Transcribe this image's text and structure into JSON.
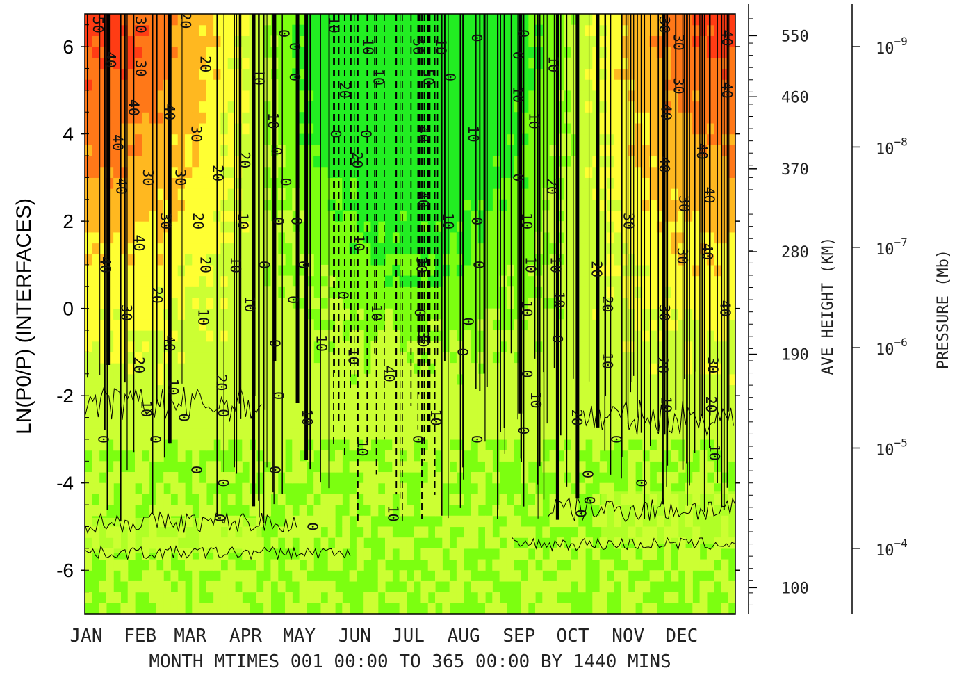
{
  "chart_data": {
    "type": "heatmap",
    "x_label": "MONTH MTIMES 001 00:00 TO 365 00:00 BY 1440 MINS",
    "x_range": [
      1,
      365
    ],
    "x_tick_labels": [
      {
        "day": 1,
        "label": "JAN"
      },
      {
        "day": 32,
        "label": "FEB"
      },
      {
        "day": 60,
        "label": "MAR"
      },
      {
        "day": 91,
        "label": "APR"
      },
      {
        "day": 121,
        "label": "MAY"
      },
      {
        "day": 152,
        "label": "JUN"
      },
      {
        "day": 182,
        "label": "JUL"
      },
      {
        "day": 213,
        "label": "AUG"
      },
      {
        "day": 244,
        "label": "SEP"
      },
      {
        "day": 274,
        "label": "OCT"
      },
      {
        "day": 305,
        "label": "NOV"
      },
      {
        "day": 335,
        "label": "DEC"
      }
    ],
    "y_label": "LN(P0/P) (INTERFACES)",
    "y_range": [
      -7,
      6.75
    ],
    "y_ticks": [
      6,
      4,
      2,
      0,
      -2,
      -4,
      -6
    ],
    "height_axis": {
      "label": "AVE HEIGHT (KM)",
      "ticks": [
        {
          "ln": 6.25,
          "km": "550"
        },
        {
          "ln": 4.85,
          "km": "460"
        },
        {
          "ln": 3.2,
          "km": "370"
        },
        {
          "ln": 1.3,
          "km": "280"
        },
        {
          "ln": -1.05,
          "km": "190"
        },
        {
          "ln": -6.4,
          "km": "100"
        }
      ]
    },
    "pressure_axis": {
      "label": "PRESSURE (Mb)",
      "ticks": [
        {
          "ln": 6.0,
          "base": "10",
          "exp": "−9"
        },
        {
          "ln": 3.7,
          "base": "10",
          "exp": "−8"
        },
        {
          "ln": 1.4,
          "base": "10",
          "exp": "−7"
        },
        {
          "ln": -0.9,
          "base": "10",
          "exp": "−6"
        },
        {
          "ln": -3.2,
          "base": "10",
          "exp": "−5"
        },
        {
          "ln": -5.5,
          "base": "10",
          "exp": "−4"
        }
      ]
    },
    "contour_levels": [
      -50,
      -40,
      -30,
      -20,
      -10,
      0,
      10,
      20,
      30,
      40,
      50
    ],
    "colors": {
      "50": "#ff3c14",
      "40": "#ff7818",
      "30": "#ffb820",
      "20": "#ffff33",
      "10": "#ccff33",
      "0": "#7cff10",
      "-10": "#22ee22"
    },
    "contour_labels": [
      {
        "day": 8,
        "ln": 6.5,
        "text": "50"
      },
      {
        "day": 15,
        "ln": 5.7,
        "text": "40"
      },
      {
        "day": 32,
        "ln": 6.5,
        "text": "30"
      },
      {
        "day": 32,
        "ln": 5.5,
        "text": "30"
      },
      {
        "day": 57,
        "ln": 6.6,
        "text": "20"
      },
      {
        "day": 28,
        "ln": 4.6,
        "text": "40"
      },
      {
        "day": 48,
        "ln": 4.5,
        "text": "40"
      },
      {
        "day": 19,
        "ln": 3.8,
        "text": "40"
      },
      {
        "day": 63,
        "ln": 4.0,
        "text": "30"
      },
      {
        "day": 68,
        "ln": 5.6,
        "text": "20"
      },
      {
        "day": 36,
        "ln": 3.0,
        "text": "30"
      },
      {
        "day": 54,
        "ln": 3.0,
        "text": "30"
      },
      {
        "day": 21,
        "ln": 2.8,
        "text": "40"
      },
      {
        "day": 46,
        "ln": 2.0,
        "text": "30"
      },
      {
        "day": 31,
        "ln": 1.5,
        "text": "40"
      },
      {
        "day": 64,
        "ln": 2.0,
        "text": "20"
      },
      {
        "day": 68,
        "ln": 1.0,
        "text": "20"
      },
      {
        "day": 12,
        "ln": 1.0,
        "text": "40"
      },
      {
        "day": 24,
        "ln": -0.1,
        "text": "30"
      },
      {
        "day": 41,
        "ln": 0.3,
        "text": "20"
      },
      {
        "day": 67,
        "ln": -0.2,
        "text": "10"
      },
      {
        "day": 48,
        "ln": -0.8,
        "text": "40"
      },
      {
        "day": 50,
        "ln": -1.8,
        "text": "10"
      },
      {
        "day": 31,
        "ln": -1.3,
        "text": "20"
      },
      {
        "day": 35,
        "ln": -2.3,
        "text": "10"
      },
      {
        "day": 11,
        "ln": -3.0,
        "text": "0"
      },
      {
        "day": 40,
        "ln": -3.0,
        "text": "0"
      },
      {
        "day": 56,
        "ln": -2.5,
        "text": "0"
      },
      {
        "day": 63,
        "ln": -3.7,
        "text": "0"
      },
      {
        "day": 75,
        "ln": 3.1,
        "text": "20"
      },
      {
        "day": 77,
        "ln": -1.7,
        "text": "20"
      },
      {
        "day": 78,
        "ln": -2.4,
        "text": "0"
      },
      {
        "day": 78,
        "ln": -4.0,
        "text": "0"
      },
      {
        "day": 76,
        "ln": -4.8,
        "text": "0"
      },
      {
        "day": 90,
        "ln": 3.4,
        "text": "20"
      },
      {
        "day": 89,
        "ln": 2.0,
        "text": "10"
      },
      {
        "day": 85,
        "ln": 1.0,
        "text": "10"
      },
      {
        "day": 93,
        "ln": 0.1,
        "text": "10"
      },
      {
        "day": 98,
        "ln": 5.3,
        "text": "10"
      },
      {
        "day": 106,
        "ln": 4.3,
        "text": "10"
      },
      {
        "day": 112,
        "ln": 6.3,
        "text": "0"
      },
      {
        "day": 108,
        "ln": 3.6,
        "text": "0"
      },
      {
        "day": 109,
        "ln": 2.0,
        "text": "0"
      },
      {
        "day": 101,
        "ln": 1.0,
        "text": "0"
      },
      {
        "day": 107,
        "ln": -0.8,
        "text": "0"
      },
      {
        "day": 109,
        "ln": -2.0,
        "text": "0"
      },
      {
        "day": 107,
        "ln": -3.7,
        "text": "0"
      },
      {
        "day": 113,
        "ln": 2.9,
        "text": "0"
      },
      {
        "day": 118,
        "ln": 6.0,
        "text": "0"
      },
      {
        "day": 118,
        "ln": 5.3,
        "text": "0"
      },
      {
        "day": 119,
        "ln": 2.0,
        "text": "0"
      },
      {
        "day": 123,
        "ln": 1.0,
        "text": "0"
      },
      {
        "day": 117,
        "ln": 0.2,
        "text": "0"
      },
      {
        "day": 125,
        "ln": -2.5,
        "text": "10"
      },
      {
        "day": 128,
        "ln": -5.0,
        "text": "0"
      },
      {
        "day": 140,
        "ln": 6.5,
        "text": "10"
      },
      {
        "day": 141,
        "ln": 4.0,
        "text": "0"
      },
      {
        "day": 133,
        "ln": -0.8,
        "text": "10"
      },
      {
        "day": 146,
        "ln": 5.0,
        "text": "20"
      },
      {
        "day": 153,
        "ln": 3.4,
        "text": "20"
      },
      {
        "day": 154,
        "ln": 1.5,
        "text": "10"
      },
      {
        "day": 145,
        "ln": 0.3,
        "text": "0"
      },
      {
        "day": 151,
        "ln": -1.1,
        "text": "10"
      },
      {
        "day": 156,
        "ln": -3.2,
        "text": "10"
      },
      {
        "day": 159,
        "ln": 6.0,
        "text": "10"
      },
      {
        "day": 158,
        "ln": 4.0,
        "text": "0"
      },
      {
        "day": 165,
        "ln": 5.3,
        "text": "10"
      },
      {
        "day": 164,
        "ln": -0.1,
        "text": "10"
      },
      {
        "day": 171,
        "ln": -1.5,
        "text": "40"
      },
      {
        "day": 173,
        "ln": -4.7,
        "text": "10"
      },
      {
        "day": 187,
        "ln": 6.0,
        "text": "50"
      },
      {
        "day": 193,
        "ln": 5.3,
        "text": "50"
      },
      {
        "day": 190,
        "ln": 4.0,
        "text": "40"
      },
      {
        "day": 190,
        "ln": 2.5,
        "text": "40"
      },
      {
        "day": 189,
        "ln": 1.0,
        "text": "30"
      },
      {
        "day": 188,
        "ln": -0.1,
        "text": "0"
      },
      {
        "day": 190,
        "ln": -0.7,
        "text": "30"
      },
      {
        "day": 197,
        "ln": -2.5,
        "text": "10"
      },
      {
        "day": 187,
        "ln": -3.0,
        "text": "0"
      },
      {
        "day": 200,
        "ln": 6.0,
        "text": "10"
      },
      {
        "day": 205,
        "ln": 5.3,
        "text": "0"
      },
      {
        "day": 204,
        "ln": 2.0,
        "text": "10"
      },
      {
        "day": 220,
        "ln": 6.2,
        "text": "0"
      },
      {
        "day": 218,
        "ln": 4.0,
        "text": "10"
      },
      {
        "day": 220,
        "ln": 2.0,
        "text": "0"
      },
      {
        "day": 221,
        "ln": 1.0,
        "text": "0"
      },
      {
        "day": 215,
        "ln": -0.3,
        "text": "0"
      },
      {
        "day": 212,
        "ln": -1.0,
        "text": "0"
      },
      {
        "day": 220,
        "ln": -3.0,
        "text": "0"
      },
      {
        "day": 246,
        "ln": 6.3,
        "text": "0"
      },
      {
        "day": 243,
        "ln": 5.8,
        "text": "0"
      },
      {
        "day": 243,
        "ln": 4.9,
        "text": "10"
      },
      {
        "day": 252,
        "ln": 4.3,
        "text": "10"
      },
      {
        "day": 243,
        "ln": 3.0,
        "text": "0"
      },
      {
        "day": 248,
        "ln": 2.0,
        "text": "10"
      },
      {
        "day": 250,
        "ln": 1.0,
        "text": "10"
      },
      {
        "day": 248,
        "ln": 0.0,
        "text": "10"
      },
      {
        "day": 248,
        "ln": -1.5,
        "text": "0"
      },
      {
        "day": 253,
        "ln": -2.1,
        "text": "10"
      },
      {
        "day": 246,
        "ln": -2.8,
        "text": "0"
      },
      {
        "day": 263,
        "ln": 5.6,
        "text": "10"
      },
      {
        "day": 262,
        "ln": 2.8,
        "text": "20"
      },
      {
        "day": 264,
        "ln": 1.0,
        "text": "10"
      },
      {
        "day": 266,
        "ln": 0.2,
        "text": "10"
      },
      {
        "day": 265,
        "ln": -0.7,
        "text": "0"
      },
      {
        "day": 276,
        "ln": -2.5,
        "text": "20"
      },
      {
        "day": 287,
        "ln": 0.9,
        "text": "20"
      },
      {
        "day": 293,
        "ln": 0.1,
        "text": "20"
      },
      {
        "day": 293,
        "ln": -1.2,
        "text": "10"
      },
      {
        "day": 282,
        "ln": -3.8,
        "text": "0"
      },
      {
        "day": 283,
        "ln": -4.4,
        "text": "0"
      },
      {
        "day": 278,
        "ln": -4.7,
        "text": "0"
      },
      {
        "day": 298,
        "ln": -3.0,
        "text": "0"
      },
      {
        "day": 305,
        "ln": 2.0,
        "text": "30"
      },
      {
        "day": 312,
        "ln": -4.0,
        "text": "0"
      },
      {
        "day": 325,
        "ln": 6.5,
        "text": "30"
      },
      {
        "day": 333,
        "ln": 6.1,
        "text": "30"
      },
      {
        "day": 326,
        "ln": 4.5,
        "text": "40"
      },
      {
        "day": 325,
        "ln": 3.3,
        "text": "40"
      },
      {
        "day": 333,
        "ln": 5.1,
        "text": "30"
      },
      {
        "day": 336,
        "ln": 2.4,
        "text": "30"
      },
      {
        "day": 335,
        "ln": 1.2,
        "text": "30"
      },
      {
        "day": 325,
        "ln": -0.1,
        "text": "30"
      },
      {
        "day": 324,
        "ln": -1.3,
        "text": "20"
      },
      {
        "day": 326,
        "ln": -2.2,
        "text": "10"
      },
      {
        "day": 346,
        "ln": 3.6,
        "text": "40"
      },
      {
        "day": 350,
        "ln": 2.6,
        "text": "40"
      },
      {
        "day": 349,
        "ln": 1.3,
        "text": "40"
      },
      {
        "day": 352,
        "ln": -1.3,
        "text": "30"
      },
      {
        "day": 351,
        "ln": -2.2,
        "text": "20"
      },
      {
        "day": 353,
        "ln": -3.3,
        "text": "10"
      },
      {
        "day": 360,
        "ln": 6.2,
        "text": "40"
      },
      {
        "day": 360,
        "ln": 5.0,
        "text": "40"
      },
      {
        "day": 359,
        "ln": 0.0,
        "text": "40"
      }
    ]
  }
}
